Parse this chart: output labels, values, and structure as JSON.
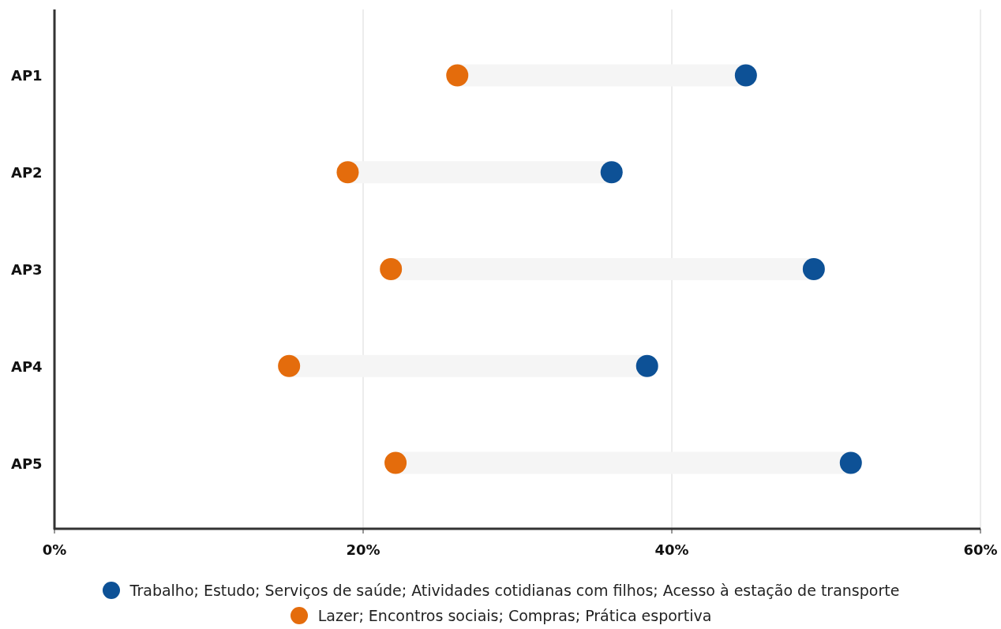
{
  "chart_data": {
    "type": "scatter",
    "orientation": "horizontal",
    "categories": [
      "AP1",
      "AP2",
      "AP3",
      "AP4",
      "AP5"
    ],
    "series": [
      {
        "type": "bar",
        "color": "#f5f5f5",
        "base": [
          26.1,
          19.0,
          21.8,
          15.2,
          22.1
        ],
        "values": [
          18.7,
          17.1,
          27.4,
          23.2,
          29.5
        ]
      },
      {
        "name": "Trabalho; Estudo; Serviços de saúde; Atividades cotidianas com filhos; Acesso à estação de transporte",
        "color": "#0d5196",
        "values": [
          44.8,
          36.1,
          49.2,
          38.4,
          51.6
        ]
      },
      {
        "name": "Lazer; Encontros sociais; Compras; Prática esportiva",
        "color": "#e46c0c",
        "values": [
          26.1,
          19.0,
          21.8,
          15.2,
          22.1
        ]
      }
    ],
    "xlim": [
      0,
      60
    ],
    "xticks": [
      {
        "value": 0,
        "label": "0%"
      },
      {
        "value": 20,
        "label": "20%"
      },
      {
        "value": 40,
        "label": "40%"
      },
      {
        "value": 60,
        "label": "60%"
      }
    ],
    "grid": "x",
    "legend": "bottom",
    "marker": "circle"
  }
}
